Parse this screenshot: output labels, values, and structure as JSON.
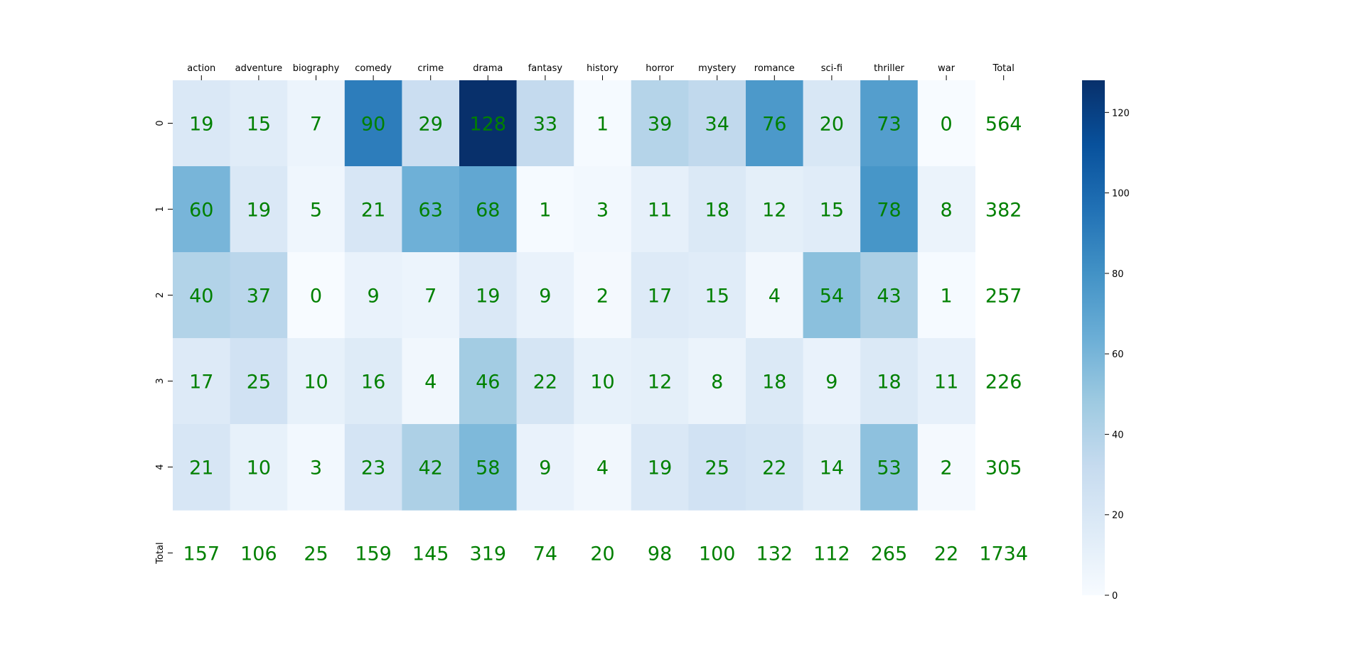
{
  "chart_data": {
    "type": "heatmap",
    "title": "",
    "xlabel": "",
    "ylabel": "",
    "x_ticks_position": "top",
    "columns": [
      "action",
      "adventure",
      "biography",
      "comedy",
      "crime",
      "drama",
      "fantasy",
      "history",
      "horror",
      "mystery",
      "romance",
      "sci-fi",
      "thriller",
      "war",
      "Total"
    ],
    "rows": [
      "0",
      "1",
      "2",
      "3",
      "4",
      "Total"
    ],
    "values": [
      [
        19,
        15,
        7,
        90,
        29,
        128,
        33,
        1,
        39,
        34,
        76,
        20,
        73,
        0,
        564
      ],
      [
        60,
        19,
        5,
        21,
        63,
        68,
        1,
        3,
        11,
        18,
        12,
        15,
        78,
        8,
        382
      ],
      [
        40,
        37,
        0,
        9,
        7,
        19,
        9,
        2,
        17,
        15,
        4,
        54,
        43,
        1,
        257
      ],
      [
        17,
        25,
        10,
        16,
        4,
        46,
        22,
        10,
        12,
        8,
        18,
        9,
        18,
        11,
        226
      ],
      [
        21,
        10,
        3,
        23,
        42,
        58,
        9,
        4,
        19,
        25,
        22,
        14,
        53,
        2,
        305
      ],
      [
        157,
        106,
        25,
        159,
        145,
        319,
        74,
        20,
        98,
        100,
        132,
        112,
        265,
        22,
        1734
      ]
    ],
    "colored_rows": 5,
    "colored_columns": 14,
    "colormap": "Blues",
    "vmin": 0,
    "vmax": 128,
    "colorbar_ticks": [
      0,
      20,
      40,
      60,
      80,
      100,
      120
    ],
    "annotation_color": "#008000"
  }
}
